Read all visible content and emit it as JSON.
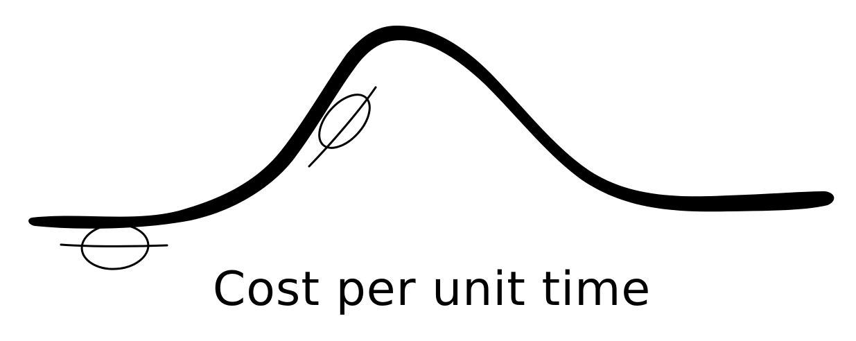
{
  "diagram": {
    "caption": "Cost per unit time",
    "stroke_color": "#000000",
    "background_color": "#ffffff",
    "markers": [
      {
        "name": "null-set-marker-left",
        "symbol": "empty-set"
      },
      {
        "name": "phi-marker-slope",
        "symbol": "phi"
      }
    ]
  }
}
